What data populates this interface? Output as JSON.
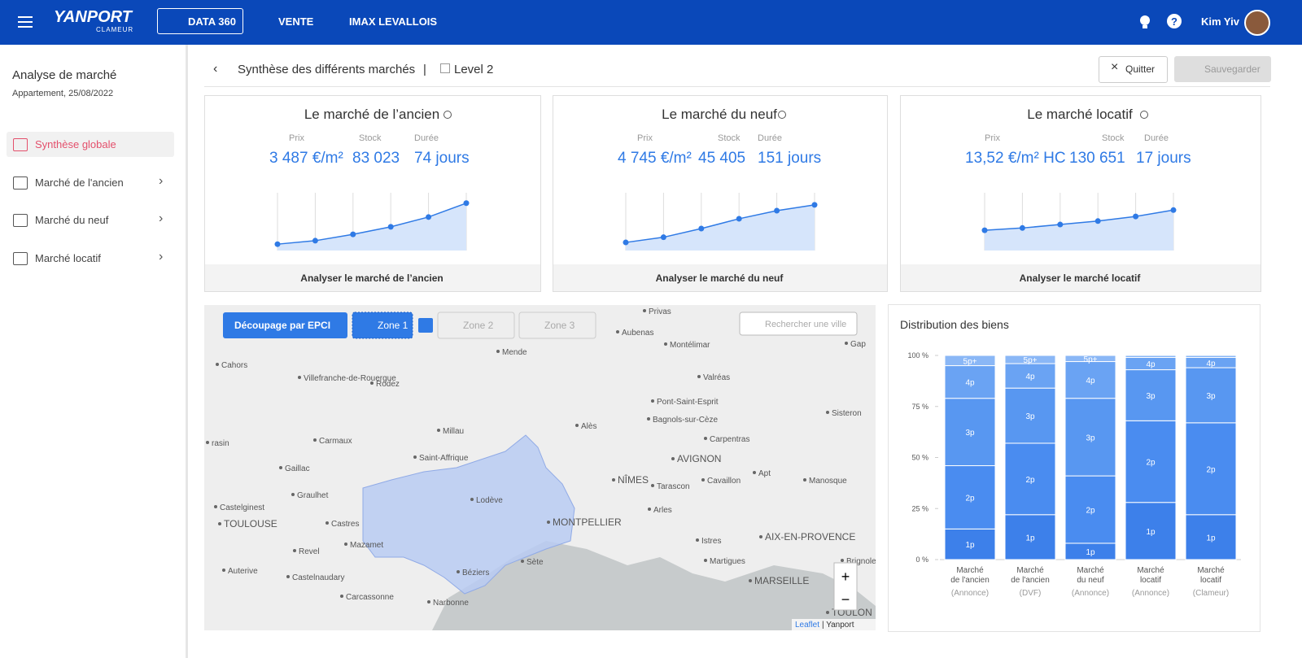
{
  "header": {
    "brand": "YANPORT",
    "sub_brand": "CLAMEUR",
    "tabs": [
      "DATA 360",
      "VENTE",
      "IMAX LEVALLOIS"
    ],
    "user": "Kim Yiv"
  },
  "sidebar": {
    "title": "Analyse de marché",
    "subtitle": "Appartement, 25/08/2022",
    "items": [
      "Synthèse globale",
      "Marché de l'ancien",
      "Marché du neuf",
      "Marché locatif"
    ]
  },
  "toolbar": {
    "title": "Synthèse des différents marchés",
    "separator": "|",
    "level": "Level 2",
    "quit": "Quitter",
    "save": "Sauvegarder"
  },
  "cards": [
    {
      "title": "Le marché de l’ancien",
      "metrics": [
        {
          "label": "Prix",
          "value": "3 487 €/m²"
        },
        {
          "label": "Stock",
          "value": "83 023"
        },
        {
          "label": "Durée",
          "value": "74 jours"
        }
      ],
      "trend": [
        11,
        17,
        28,
        41,
        58,
        82
      ],
      "trend_ylim": [
        0,
        100
      ],
      "action": "Analyser le marché de l’ancien"
    },
    {
      "title": "Le marché du neuf",
      "metrics": [
        {
          "label": "Prix",
          "value": "4 745 €/m²"
        },
        {
          "label": "Stock",
          "value": "45 405"
        },
        {
          "label": "Durée",
          "value": "151 jours"
        }
      ],
      "trend": [
        14,
        23,
        38,
        55,
        69,
        79
      ],
      "trend_ylim": [
        0,
        100
      ],
      "action": "Analyser le marché du neuf"
    },
    {
      "title": "Le marché locatif",
      "metrics": [
        {
          "label": "Prix",
          "value": "13,52 €/m² HC"
        },
        {
          "label": "Stock",
          "value": "130 651"
        },
        {
          "label": "Durée",
          "value": "17 jours"
        }
      ],
      "trend": [
        35,
        39,
        45,
        51,
        59,
        70
      ],
      "trend_ylim": [
        0,
        100
      ],
      "action": "Analyser le marché locatif"
    }
  ],
  "map": {
    "split_button": "Découpage par EPCI",
    "zones": [
      "Zone 1",
      "Zone 2",
      "Zone 3"
    ],
    "search_placeholder": "Rechercher une ville",
    "zoom_in": "+",
    "zoom_out": "−",
    "attribution_link": "Leaflet",
    "attribution_text": "| Yanport",
    "cities": [
      "Privas",
      "Aubenas",
      "Montélimar",
      "Mende",
      "Gap",
      "Cahors",
      "Valréas",
      "Villefranche-de-Rouergue",
      "Rodez",
      "Pont-Saint-Esprit",
      "Sisteron",
      "Alès",
      "Bagnols-sur-Cèze",
      "Millau",
      "Carpentras",
      "Carmaux",
      "rasin",
      "Saint-Affrique",
      "AVIGNON",
      "Gaillac",
      "Apt",
      "NÎMES",
      "Tarascon",
      "Cavaillon",
      "Manosque",
      "Graulhet",
      "Lodève",
      "Castelginest",
      "Arles",
      "TOULOUSE",
      "Castres",
      "MONTPELLIER",
      "AIX-EN-PROVENCE",
      "Istres",
      "Mazamet",
      "Revel",
      "Sète",
      "Martigues",
      "Brignoles",
      "Béziers",
      "Auterive",
      "Castelnaudary",
      "MARSEILLE",
      "Carcassonne",
      "Narbonne",
      "TOULON"
    ]
  },
  "chart_data": {
    "type": "stacked_bar",
    "title": "Distribution des biens",
    "categories": [
      [
        "Marché",
        "de l'ancien"
      ],
      [
        "Marché",
        "de l'ancien"
      ],
      [
        "Marché",
        "du neuf"
      ],
      [
        "Marché",
        "locatif"
      ],
      [
        "Marché",
        "locatif"
      ]
    ],
    "category_sources": [
      "(Annonce)",
      "(DVF)",
      "(Annonce)",
      "(Annonce)",
      "(Clameur)"
    ],
    "series": [
      {
        "name": "1p",
        "color": "#3d80ea",
        "values": [
          15,
          22,
          8,
          28,
          22
        ]
      },
      {
        "name": "2p",
        "color": "#4a8cf0",
        "values": [
          31,
          35,
          33,
          40,
          45
        ]
      },
      {
        "name": "3p",
        "color": "#5897f1",
        "values": [
          33,
          27,
          38,
          25,
          27
        ]
      },
      {
        "name": "4p",
        "color": "#6aa3f3",
        "values": [
          16,
          12,
          18,
          6,
          5
        ]
      },
      {
        "name": "5p+",
        "color": "#8ab7f6",
        "values": [
          5,
          4,
          3,
          1,
          1
        ]
      }
    ],
    "ylim": [
      0,
      100
    ],
    "yticks": [
      {
        "value": 0,
        "label": "0 %"
      },
      {
        "value": 25,
        "label": "25 %"
      },
      {
        "value": 50,
        "label": "50 %"
      },
      {
        "value": 75,
        "label": "75 %"
      },
      {
        "value": 100,
        "label": "100 %"
      }
    ]
  }
}
